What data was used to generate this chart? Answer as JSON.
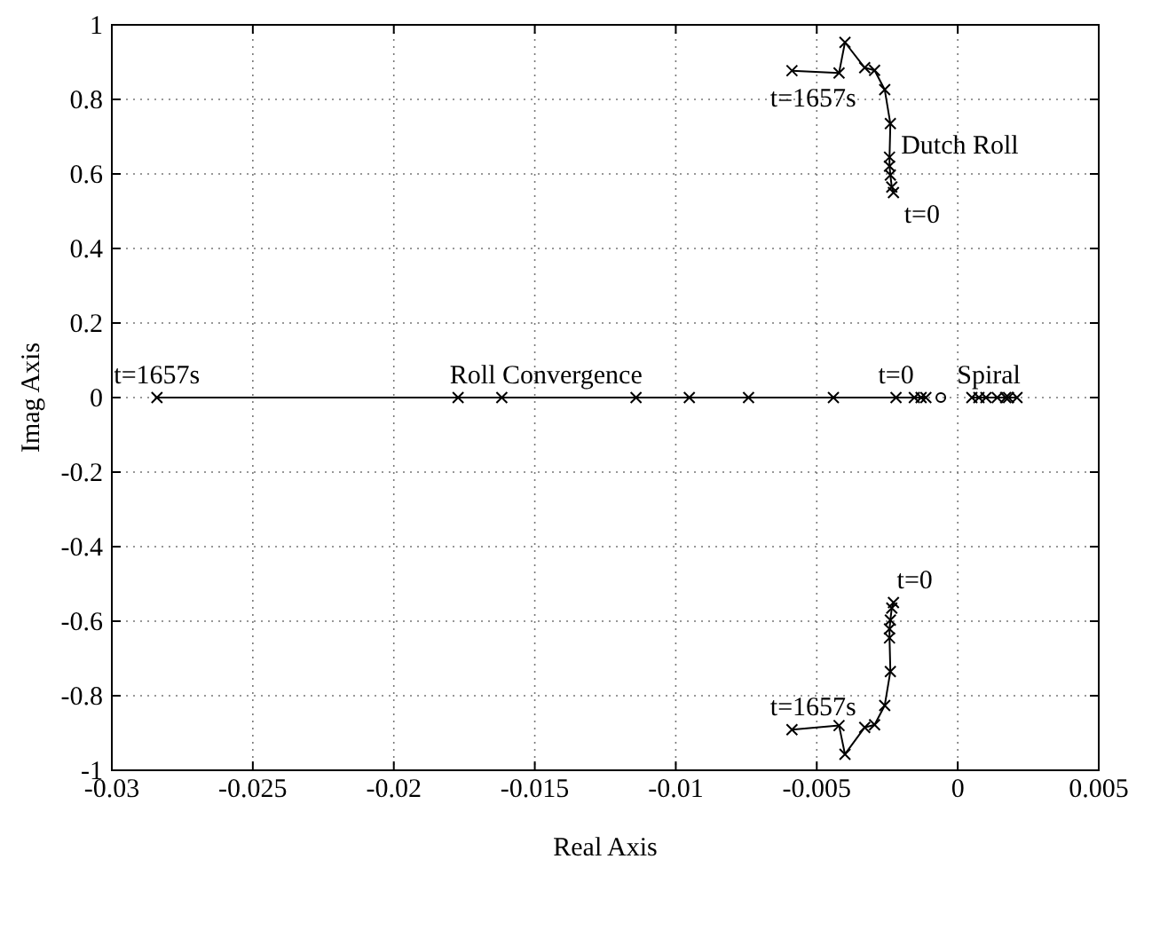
{
  "chart_data": {
    "type": "line",
    "xlabel": "Real Axis",
    "ylabel": "Imag Axis",
    "xlim": [
      -0.03,
      0.005
    ],
    "ylim": [
      -1,
      1
    ],
    "xticks": [
      -0.03,
      -0.025,
      -0.02,
      -0.015,
      -0.01,
      -0.005,
      0,
      0.005
    ],
    "yticks": [
      -1,
      -0.8,
      -0.6,
      -0.4,
      -0.2,
      0,
      0.2,
      0.4,
      0.6,
      0.8,
      1
    ],
    "grid": true,
    "marker": "cross",
    "line_style": "solid",
    "series": [
      {
        "color": "#000000",
        "x": [
          -0.00228,
          -0.00234,
          -0.00239,
          -0.00242,
          -0.00242,
          -0.00239,
          -0.00259,
          -0.00295,
          -0.0033,
          -0.004,
          -0.00421,
          -0.00588
        ],
        "values": [
          0.55,
          0.565,
          0.597,
          0.621,
          0.645,
          0.735,
          0.826,
          0.878,
          0.885,
          0.953,
          0.871,
          0.877
        ]
      },
      {
        "color": "#000000",
        "x": [
          -0.00228,
          -0.00234,
          -0.00239,
          -0.00242,
          -0.00242,
          -0.00239,
          -0.00259,
          -0.00295,
          -0.0033,
          -0.004,
          -0.00421,
          -0.00588
        ],
        "values": [
          -0.55,
          -0.565,
          -0.597,
          -0.621,
          -0.645,
          -0.735,
          -0.826,
          -0.878,
          -0.885,
          -0.957,
          -0.88,
          -0.891
        ]
      },
      {
        "color": "#000000",
        "x": [
          -0.00113,
          -0.0013,
          -0.00154,
          -0.00219,
          -0.00441,
          -0.00742,
          -0.00952,
          -0.01141,
          -0.01617,
          -0.01772,
          -0.0284
        ],
        "values": [
          0,
          0,
          0,
          0,
          0,
          0,
          0,
          0,
          0,
          0,
          0
        ]
      },
      {
        "color": "#000000",
        "x": [
          0.0005,
          0.00075,
          0.001,
          0.0014,
          0.0017,
          0.0018,
          0.0021
        ],
        "values": [
          0,
          0,
          0,
          0,
          0,
          0,
          0
        ]
      },
      {
        "type": "scatter",
        "marker": "circle",
        "color": "#000000",
        "x": [
          -0.0006
        ],
        "values": [
          0
        ]
      }
    ],
    "annotations": [
      {
        "text": "t=1657s",
        "x": -0.00588,
        "y": 0.877
      },
      {
        "text": "Dutch Roll",
        "x": -0.00239,
        "y": 0.735
      },
      {
        "text": "t=0",
        "x": -0.00228,
        "y": 0.55
      },
      {
        "text": "t=1657s",
        "x": -0.0284,
        "y": 0
      },
      {
        "text": "Roll Convergence",
        "x": -0.0146,
        "y": 0
      },
      {
        "text": "t=0",
        "x": -0.00219,
        "y": 0
      },
      {
        "text": "Spiral",
        "x": 0.0011,
        "y": 0
      },
      {
        "text": "t=0",
        "x": -0.00228,
        "y": -0.55
      },
      {
        "text": "t=1657s",
        "x": -0.00588,
        "y": -0.891
      }
    ]
  }
}
